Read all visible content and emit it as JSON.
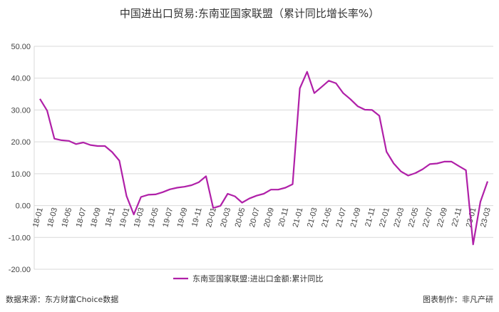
{
  "chart_data": {
    "type": "line",
    "title": "中国进出口贸易:东南亚国家联盟（累计同比增长率%）",
    "ylim": [
      -20,
      50
    ],
    "y_ticks": [
      "50.00",
      "40.00",
      "30.00",
      "20.00",
      "10.00",
      "0.00",
      "-10.00",
      "-20.00"
    ],
    "x_tick_labels": [
      "18-01",
      "18-03",
      "18-05",
      "18-07",
      "18-09",
      "18-11",
      "19-01",
      "19-03",
      "19-05",
      "19-07",
      "19-09",
      "19-11",
      "20-01",
      "20-03",
      "20-05",
      "20-07",
      "20-09",
      "20-11",
      "21-01",
      "21-03",
      "21-05",
      "21-07",
      "21-09",
      "21-11",
      "22-01",
      "22-03",
      "22-05",
      "22-07",
      "22-09",
      "22-11",
      "23-01",
      "23-03"
    ],
    "series": [
      {
        "name": "东南亚国家联盟:进出口金额:累计同比",
        "color": "#b020a8",
        "x": [
          "18-01",
          "18-02",
          "18-03",
          "18-04",
          "18-05",
          "18-06",
          "18-07",
          "18-08",
          "18-09",
          "18-10",
          "18-11",
          "18-12",
          "19-01",
          "19-02",
          "19-03",
          "19-04",
          "19-05",
          "19-06",
          "19-07",
          "19-08",
          "19-09",
          "19-10",
          "19-11",
          "19-12",
          "20-01",
          "20-02",
          "20-03",
          "20-04",
          "20-05",
          "20-06",
          "20-07",
          "20-08",
          "20-09",
          "20-10",
          "20-11",
          "20-12",
          "21-01",
          "21-02",
          "21-03",
          "21-04",
          "21-05",
          "21-06",
          "21-07",
          "21-08",
          "21-09",
          "21-10",
          "21-11",
          "21-12",
          "22-01",
          "22-02",
          "22-03",
          "22-04",
          "22-05",
          "22-06",
          "22-07",
          "22-08",
          "22-09",
          "22-10",
          "22-11",
          "22-12",
          "23-01",
          "23-02",
          "23-03"
        ],
        "values": [
          33.5,
          29.8,
          21.0,
          20.5,
          20.3,
          19.3,
          19.8,
          19.0,
          18.7,
          18.7,
          16.8,
          14.1,
          3.0,
          -2.8,
          2.7,
          3.4,
          3.5,
          4.2,
          5.1,
          5.6,
          5.9,
          6.4,
          7.3,
          9.2,
          -0.8,
          -0.1,
          3.7,
          2.9,
          0.9,
          2.2,
          3.1,
          3.7,
          5.0,
          5.0,
          5.6,
          6.7,
          36.8,
          42.0,
          35.3,
          37.2,
          39.2,
          38.4,
          35.3,
          33.4,
          31.2,
          30.1,
          30.0,
          28.2,
          16.9,
          13.2,
          10.7,
          9.4,
          10.2,
          11.4,
          13.0,
          13.2,
          13.8,
          13.8,
          12.4,
          11.1,
          -12.2,
          1.2,
          7.6
        ]
      }
    ],
    "legend_position": "bottom-center",
    "grid": "horizontal"
  },
  "footer": {
    "source": "数据来源：东方财富Choice数据",
    "credit": "图表制作：非凡产研"
  }
}
